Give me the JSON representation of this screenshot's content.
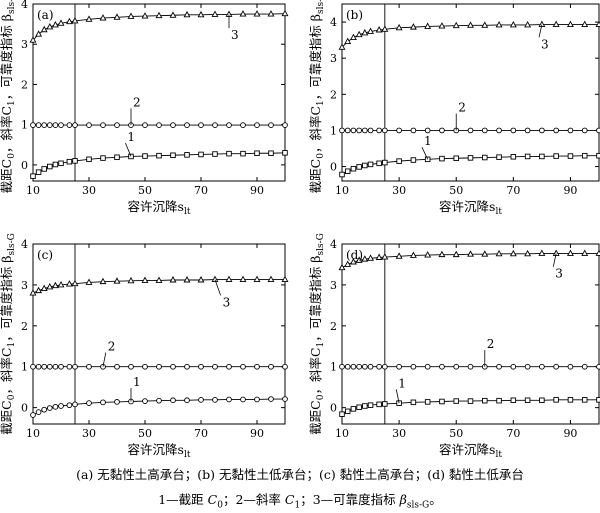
{
  "caption": {
    "line1": "(a) 无黏性土高承台；(b) 无黏性土低承台；(c) 黏性土高承台；(d) 黏性土低承台",
    "line2": {
      "c0_prefix": "1—截距 ",
      "c0_symbol": "C",
      "c0_sub": "0",
      "c1_prefix": "；2—斜率 ",
      "c1_symbol": "C",
      "c1_sub": "1",
      "beta_prefix": "；3—可靠度指标 ",
      "beta_symbol": "β",
      "beta_sub": "sls-G",
      "end": "。"
    }
  },
  "axis_text": {
    "xlabel": "容许沉降s",
    "xlabel_sub": "lt",
    "ylabel_a": "截距C",
    "ylabel_a_sub": "0",
    "ylabel_b": "，斜率C",
    "ylabel_b_sub": "1",
    "ylabel_c": "，可靠度指标 β",
    "ylabel_c_sub": "sls-G"
  },
  "colors": {
    "line": "#000000",
    "marker_fill": "#ffffff",
    "grid_line": "#000000"
  },
  "chart_data": [
    {
      "type": "line",
      "panel_label": "(a)",
      "x": [
        10,
        12,
        14,
        16,
        18,
        20,
        23,
        25,
        30,
        35,
        40,
        45,
        50,
        55,
        60,
        65,
        70,
        75,
        80,
        85,
        90,
        95,
        100
      ],
      "series": [
        {
          "label": "1",
          "marker": "square",
          "values": [
            -0.28,
            -0.18,
            -0.1,
            -0.04,
            0.01,
            0.04,
            0.08,
            0.1,
            0.14,
            0.17,
            0.19,
            0.21,
            0.22,
            0.23,
            0.24,
            0.25,
            0.26,
            0.27,
            0.28,
            0.28,
            0.29,
            0.29,
            0.3
          ]
        },
        {
          "label": "2",
          "marker": "circle",
          "values": [
            0.99,
            0.99,
            0.99,
            0.99,
            0.99,
            0.99,
            0.99,
            0.99,
            0.99,
            0.99,
            0.99,
            0.99,
            0.99,
            0.99,
            0.99,
            0.99,
            0.99,
            0.99,
            0.99,
            0.99,
            0.99,
            0.99,
            0.99
          ]
        },
        {
          "label": "3",
          "marker": "triangle",
          "values": [
            3.1,
            3.25,
            3.36,
            3.43,
            3.48,
            3.52,
            3.56,
            3.58,
            3.62,
            3.65,
            3.67,
            3.69,
            3.7,
            3.71,
            3.72,
            3.73,
            3.73,
            3.74,
            3.74,
            3.75,
            3.75,
            3.75,
            3.76
          ]
        }
      ],
      "vline_x": 25,
      "xlim": [
        10,
        100
      ],
      "ylim": [
        -0.4,
        4
      ],
      "xticks": [
        10,
        30,
        50,
        70,
        90
      ],
      "yticks": [
        0,
        1,
        2,
        3,
        4
      ],
      "series_label_pos": {
        "1": [
          43,
          0.62
        ],
        "2": [
          45,
          1.48
        ],
        "3": [
          80,
          3.15
        ]
      }
    },
    {
      "type": "line",
      "panel_label": "(b)",
      "x": [
        10,
        12,
        14,
        16,
        18,
        20,
        23,
        25,
        30,
        35,
        40,
        45,
        50,
        55,
        60,
        65,
        70,
        75,
        80,
        85,
        90,
        95,
        100
      ],
      "series": [
        {
          "label": "1",
          "marker": "square",
          "values": [
            -0.22,
            -0.13,
            -0.06,
            -0.01,
            0.03,
            0.06,
            0.09,
            0.11,
            0.15,
            0.18,
            0.2,
            0.22,
            0.23,
            0.24,
            0.25,
            0.26,
            0.27,
            0.28,
            0.28,
            0.29,
            0.29,
            0.3,
            0.3
          ]
        },
        {
          "label": "2",
          "marker": "circle",
          "values": [
            1.0,
            1.0,
            1.0,
            1.0,
            1.0,
            1.0,
            1.0,
            1.0,
            1.0,
            1.0,
            1.0,
            1.0,
            1.0,
            1.0,
            1.0,
            1.0,
            1.0,
            1.0,
            1.0,
            1.0,
            1.0,
            1.0,
            1.0
          ]
        },
        {
          "label": "3",
          "marker": "triangle",
          "values": [
            3.3,
            3.46,
            3.57,
            3.65,
            3.7,
            3.74,
            3.78,
            3.8,
            3.84,
            3.86,
            3.88,
            3.89,
            3.9,
            3.91,
            3.91,
            3.92,
            3.92,
            3.92,
            3.93,
            3.93,
            3.93,
            3.93,
            3.93
          ]
        }
      ],
      "vline_x": 25,
      "xlim": [
        10,
        100
      ],
      "ylim": [
        -0.4,
        4.5
      ],
      "xticks": [
        10,
        30,
        50,
        70,
        90
      ],
      "yticks": [
        0,
        1,
        2,
        3,
        4
      ],
      "series_label_pos": {
        "1": [
          38,
          0.62
        ],
        "2": [
          50,
          1.55
        ],
        "3": [
          79,
          3.3
        ]
      }
    },
    {
      "type": "line",
      "panel_label": "(c)",
      "x": [
        10,
        12,
        14,
        16,
        18,
        20,
        23,
        25,
        30,
        35,
        40,
        45,
        50,
        55,
        60,
        65,
        70,
        75,
        80,
        85,
        90,
        95,
        100
      ],
      "series": [
        {
          "label": "1",
          "marker": "circle",
          "values": [
            -0.18,
            -0.11,
            -0.05,
            -0.01,
            0.02,
            0.04,
            0.06,
            0.08,
            0.11,
            0.13,
            0.14,
            0.15,
            0.16,
            0.17,
            0.18,
            0.18,
            0.19,
            0.19,
            0.2,
            0.2,
            0.2,
            0.21,
            0.21
          ]
        },
        {
          "label": "2",
          "marker": "circle",
          "values": [
            1.0,
            1.0,
            1.0,
            1.0,
            1.0,
            1.0,
            1.0,
            1.0,
            1.0,
            1.0,
            1.0,
            1.0,
            1.0,
            1.0,
            1.0,
            1.0,
            1.0,
            1.0,
            1.0,
            1.0,
            1.0,
            1.0,
            1.0
          ]
        },
        {
          "label": "3",
          "marker": "triangle",
          "values": [
            2.8,
            2.86,
            2.91,
            2.95,
            2.98,
            3.0,
            3.02,
            3.03,
            3.06,
            3.08,
            3.09,
            3.1,
            3.11,
            3.11,
            3.12,
            3.12,
            3.12,
            3.13,
            3.13,
            3.13,
            3.13,
            3.13,
            3.13
          ]
        }
      ],
      "vline_x": 25,
      "xlim": [
        10,
        100
      ],
      "ylim": [
        -0.4,
        4
      ],
      "xticks": [
        10,
        30,
        50,
        70,
        90
      ],
      "yticks": [
        0,
        1,
        2,
        3,
        4
      ],
      "series_label_pos": {
        "1": [
          45,
          0.55
        ],
        "2": [
          36,
          1.42
        ],
        "3": [
          77,
          2.5
        ]
      }
    },
    {
      "type": "line",
      "panel_label": "(d)",
      "x": [
        10,
        12,
        14,
        16,
        18,
        20,
        23,
        25,
        30,
        35,
        40,
        45,
        50,
        55,
        60,
        65,
        70,
        75,
        80,
        85,
        90,
        95,
        100
      ],
      "series": [
        {
          "label": "1",
          "marker": "square",
          "values": [
            -0.16,
            -0.09,
            -0.03,
            0.01,
            0.04,
            0.06,
            0.08,
            0.09,
            0.11,
            0.13,
            0.14,
            0.15,
            0.16,
            0.16,
            0.17,
            0.17,
            0.18,
            0.18,
            0.18,
            0.19,
            0.19,
            0.19,
            0.19
          ]
        },
        {
          "label": "2",
          "marker": "circle",
          "values": [
            1.0,
            1.0,
            1.0,
            1.0,
            1.0,
            1.0,
            1.0,
            1.0,
            1.0,
            1.0,
            1.0,
            1.0,
            1.0,
            1.0,
            1.0,
            1.0,
            1.0,
            1.0,
            1.0,
            1.0,
            1.0,
            1.0,
            1.0
          ]
        },
        {
          "label": "3",
          "marker": "triangle",
          "values": [
            3.42,
            3.5,
            3.56,
            3.6,
            3.63,
            3.65,
            3.67,
            3.68,
            3.7,
            3.72,
            3.73,
            3.74,
            3.74,
            3.75,
            3.75,
            3.76,
            3.76,
            3.76,
            3.77,
            3.77,
            3.77,
            3.77,
            3.77
          ]
        }
      ],
      "vline_x": 25,
      "xlim": [
        10,
        100
      ],
      "ylim": [
        -0.4,
        4
      ],
      "xticks": [
        10,
        30,
        50,
        70,
        90
      ],
      "yticks": [
        0,
        1,
        2,
        3,
        4
      ],
      "series_label_pos": {
        "1": [
          29,
          0.52
        ],
        "2": [
          60,
          1.48
        ],
        "3": [
          84,
          3.2
        ]
      }
    }
  ]
}
